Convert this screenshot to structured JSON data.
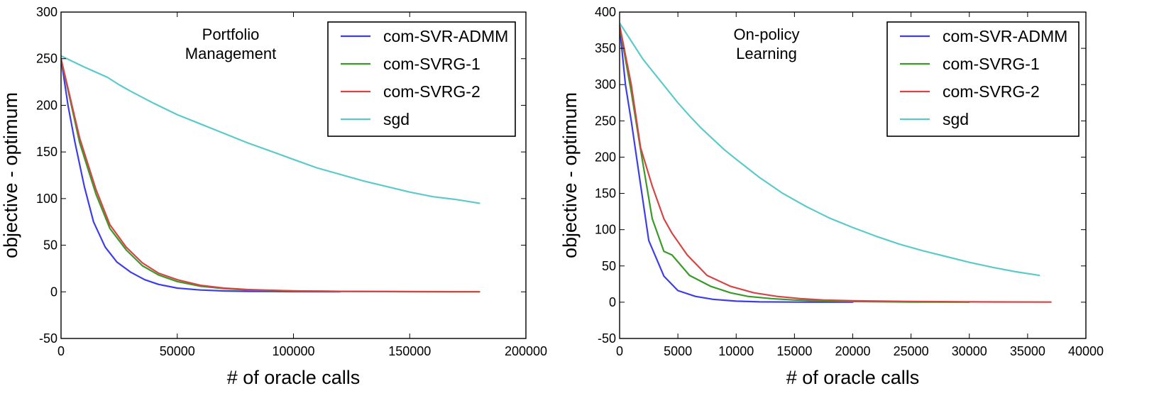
{
  "chart_data": [
    {
      "type": "line",
      "title": "Portfolio Management",
      "title_lines": [
        "Portfolio",
        "Management"
      ],
      "xlabel": "# of oracle calls",
      "ylabel": "objective - optimum",
      "xlim": [
        0,
        200000
      ],
      "ylim": [
        -50,
        300
      ],
      "xticks": [
        0,
        50000,
        100000,
        150000,
        200000
      ],
      "yticks": [
        -50,
        0,
        50,
        100,
        150,
        200,
        250,
        300
      ],
      "legend_position": "top-right",
      "series": [
        {
          "name": "com-SVR-ADMM",
          "color": "#3d3dea",
          "x": [
            0,
            3000,
            6000,
            10000,
            14000,
            19000,
            24000,
            30000,
            36000,
            42000,
            50000,
            60000,
            70000,
            80000,
            100000,
            120000
          ],
          "y": [
            250,
            200,
            160,
            113,
            75,
            48,
            32,
            21,
            13,
            8,
            4,
            2,
            1,
            0.5,
            0.2,
            0.1
          ]
        },
        {
          "name": "com-SVRG-1",
          "color": "#3a9a28",
          "x": [
            0,
            8000,
            15000,
            21000,
            28000,
            35000,
            42000,
            50000,
            60000,
            70000,
            80000,
            100000,
            120000,
            150000,
            180000
          ],
          "y": [
            250,
            160,
            105,
            68,
            45,
            28,
            18,
            11,
            6,
            3.5,
            2,
            1,
            0.5,
            0.2,
            0.1
          ]
        },
        {
          "name": "com-SVRG-2",
          "color": "#d64545",
          "x": [
            0,
            8000,
            15000,
            21000,
            28000,
            35000,
            42000,
            50000,
            60000,
            70000,
            80000,
            100000,
            120000,
            150000,
            180000
          ],
          "y": [
            250,
            165,
            110,
            72,
            48,
            31,
            20,
            13,
            7,
            4,
            2.5,
            1,
            0.5,
            0.2,
            0.1
          ]
        },
        {
          "name": "sgd",
          "color": "#5ccaca",
          "x": [
            0,
            10000,
            20000,
            25000,
            30000,
            40000,
            50000,
            60000,
            70000,
            80000,
            90000,
            100000,
            110000,
            120000,
            130000,
            140000,
            150000,
            160000,
            170000,
            180000
          ],
          "y": [
            253,
            241,
            230,
            222,
            215,
            202,
            190,
            180,
            170,
            160,
            151,
            142,
            133,
            126,
            119,
            113,
            107,
            102,
            99,
            95
          ]
        }
      ]
    },
    {
      "type": "line",
      "title": "On-policy Learning",
      "title_lines": [
        "On-policy",
        "Learning"
      ],
      "xlabel": "# of oracle calls",
      "ylabel": "objective - optimum",
      "xlim": [
        0,
        40000
      ],
      "ylim": [
        -50,
        400
      ],
      "xticks": [
        0,
        5000,
        10000,
        15000,
        20000,
        25000,
        30000,
        35000,
        40000
      ],
      "yticks": [
        -50,
        0,
        50,
        100,
        150,
        200,
        250,
        300,
        350,
        400
      ],
      "legend_position": "top-right",
      "series": [
        {
          "name": "com-SVR-ADMM",
          "color": "#3d3dea",
          "x": [
            0,
            500,
            1000,
            1500,
            2500,
            3800,
            5000,
            6500,
            8000,
            10000,
            12000,
            15000,
            20000
          ],
          "y": [
            380,
            300,
            250,
            195,
            85,
            36,
            16,
            8,
            4,
            1.5,
            0.5,
            0.2,
            0.1
          ]
        },
        {
          "name": "com-SVRG-1",
          "color": "#3a9a28",
          "x": [
            0,
            1000,
            1800,
            2800,
            3800,
            4500,
            6000,
            7800,
            9500,
            11000,
            13000,
            15000,
            17000,
            20000,
            25000,
            30000
          ],
          "y": [
            380,
            290,
            210,
            115,
            70,
            65,
            37,
            22,
            13,
            8,
            5,
            3,
            2,
            1,
            0.3,
            0.1
          ]
        },
        {
          "name": "com-SVRG-2",
          "color": "#d64545",
          "x": [
            0,
            1000,
            1800,
            2800,
            3800,
            4500,
            5800,
            7500,
            9500,
            11500,
            13500,
            15500,
            17500,
            20000,
            25000,
            30000,
            37000
          ],
          "y": [
            382,
            300,
            213,
            160,
            115,
            95,
            65,
            37,
            22,
            13,
            8,
            5,
            3,
            2,
            1,
            0.5,
            0.2
          ]
        },
        {
          "name": "sgd",
          "color": "#5ccaca",
          "x": [
            0,
            1000,
            2000,
            3000,
            4000,
            5000,
            6000,
            7000,
            8000,
            9000,
            10000,
            12000,
            14000,
            16000,
            18000,
            20000,
            22000,
            24000,
            26000,
            28000,
            30000,
            32000,
            34000,
            36000
          ],
          "y": [
            385,
            360,
            335,
            315,
            295,
            275,
            257,
            240,
            225,
            210,
            197,
            172,
            150,
            132,
            116,
            103,
            91,
            80,
            71,
            63,
            55,
            48,
            42,
            37
          ]
        }
      ]
    }
  ]
}
